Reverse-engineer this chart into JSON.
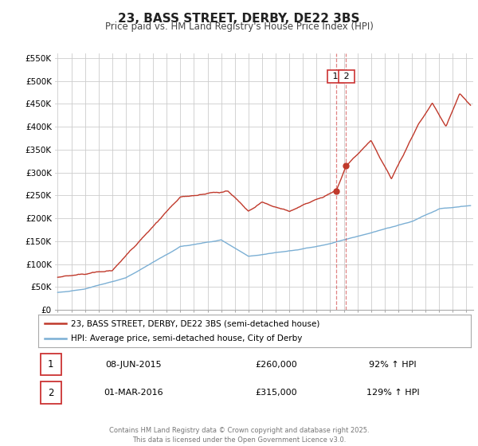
{
  "title": "23, BASS STREET, DERBY, DE22 3BS",
  "subtitle": "Price paid vs. HM Land Registry's House Price Index (HPI)",
  "title_fontsize": 11,
  "subtitle_fontsize": 8.5,
  "background_color": "#ffffff",
  "plot_bg_color": "#ffffff",
  "grid_color": "#cccccc",
  "hpi_color": "#7bafd4",
  "price_color": "#c0392b",
  "ylim": [
    0,
    560000
  ],
  "yticks": [
    0,
    50000,
    100000,
    150000,
    200000,
    250000,
    300000,
    350000,
    400000,
    450000,
    500000,
    550000
  ],
  "ytick_labels": [
    "£0",
    "£50K",
    "£100K",
    "£150K",
    "£200K",
    "£250K",
    "£300K",
    "£350K",
    "£400K",
    "£450K",
    "£500K",
    "£550K"
  ],
  "xlim_start": 1994.8,
  "xlim_end": 2025.5,
  "xticks": [
    1995,
    1996,
    1997,
    1998,
    1999,
    2000,
    2001,
    2002,
    2003,
    2004,
    2005,
    2006,
    2007,
    2008,
    2009,
    2010,
    2011,
    2012,
    2013,
    2014,
    2015,
    2016,
    2017,
    2018,
    2019,
    2020,
    2021,
    2022,
    2023,
    2024,
    2025
  ],
  "vline1_x": 2015.44,
  "vline2_x": 2016.17,
  "marker1_y": 260000,
  "marker2_y": 315000,
  "legend_label_red": "23, BASS STREET, DERBY, DE22 3BS (semi-detached house)",
  "legend_label_blue": "HPI: Average price, semi-detached house, City of Derby",
  "footer_text": "Contains HM Land Registry data © Crown copyright and database right 2025.\nThis data is licensed under the Open Government Licence v3.0.",
  "table_row1": [
    "1",
    "08-JUN-2015",
    "£260,000",
    "92% ↑ HPI"
  ],
  "table_row2": [
    "2",
    "01-MAR-2016",
    "£315,000",
    "129% ↑ HPI"
  ]
}
